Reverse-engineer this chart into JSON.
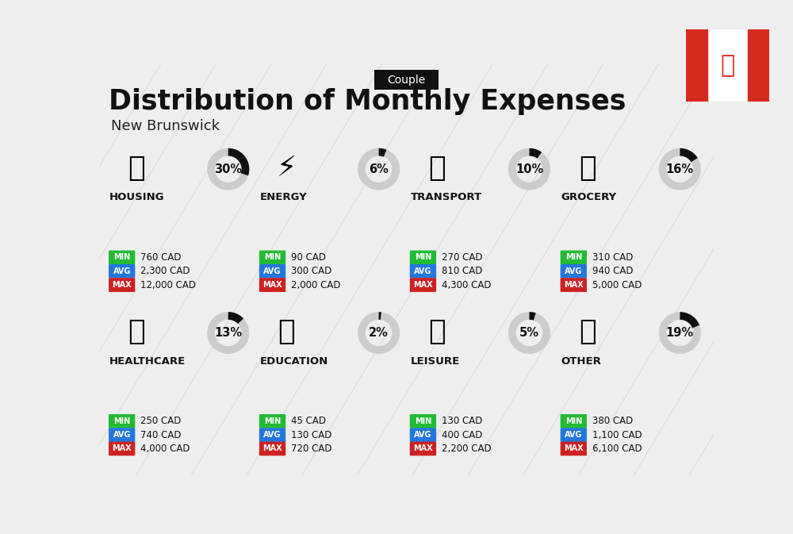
{
  "title": "Distribution of Monthly Expenses",
  "subtitle": "New Brunswick",
  "tag": "Couple",
  "bg_color": "#eeeeee",
  "categories": [
    {
      "name": "HOUSING",
      "percent": 30,
      "min_val": "760 CAD",
      "avg_val": "2,300 CAD",
      "max_val": "12,000 CAD",
      "row": 0,
      "col": 0
    },
    {
      "name": "ENERGY",
      "percent": 6,
      "min_val": "90 CAD",
      "avg_val": "300 CAD",
      "max_val": "2,000 CAD",
      "row": 0,
      "col": 1
    },
    {
      "name": "TRANSPORT",
      "percent": 10,
      "min_val": "270 CAD",
      "avg_val": "810 CAD",
      "max_val": "4,300 CAD",
      "row": 0,
      "col": 2
    },
    {
      "name": "GROCERY",
      "percent": 16,
      "min_val": "310 CAD",
      "avg_val": "940 CAD",
      "max_val": "5,000 CAD",
      "row": 0,
      "col": 3
    },
    {
      "name": "HEALTHCARE",
      "percent": 13,
      "min_val": "250 CAD",
      "avg_val": "740 CAD",
      "max_val": "4,000 CAD",
      "row": 1,
      "col": 0
    },
    {
      "name": "EDUCATION",
      "percent": 2,
      "min_val": "45 CAD",
      "avg_val": "130 CAD",
      "max_val": "720 CAD",
      "row": 1,
      "col": 1
    },
    {
      "name": "LEISURE",
      "percent": 5,
      "min_val": "130 CAD",
      "avg_val": "400 CAD",
      "max_val": "2,200 CAD",
      "row": 1,
      "col": 2
    },
    {
      "name": "OTHER",
      "percent": 19,
      "min_val": "380 CAD",
      "avg_val": "1,100 CAD",
      "max_val": "6,100 CAD",
      "row": 1,
      "col": 3
    }
  ],
  "color_min": "#22bb33",
  "color_avg": "#2277dd",
  "color_max": "#cc2222",
  "arc_color_filled": "#111111",
  "arc_color_empty": "#cccccc"
}
